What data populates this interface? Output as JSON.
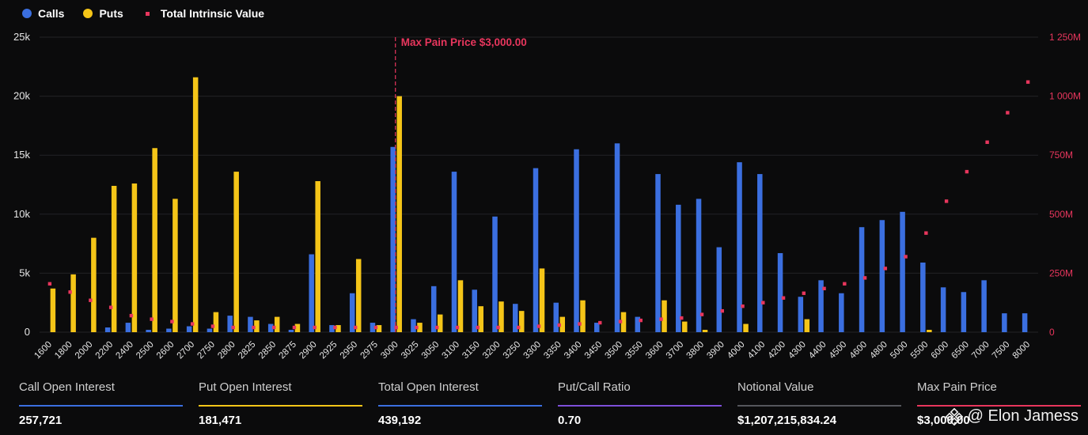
{
  "colors": {
    "calls": "#3b6fe0",
    "puts": "#f5c518",
    "intrinsic": "#e8365d",
    "bg": "#0b0b0c",
    "ratio": "#7d4fd9",
    "grid": "#232326"
  },
  "legend": {
    "calls": "Calls",
    "puts": "Puts",
    "intrinsic": "Total Intrinsic Value"
  },
  "chart_data": {
    "type": "bar",
    "title": "",
    "categories": [
      "1600",
      "1800",
      "2000",
      "2200",
      "2400",
      "2500",
      "2600",
      "2700",
      "2750",
      "2800",
      "2825",
      "2850",
      "2875",
      "2900",
      "2925",
      "2950",
      "2975",
      "3000",
      "3025",
      "3050",
      "3100",
      "3150",
      "3200",
      "3250",
      "3300",
      "3350",
      "3400",
      "3450",
      "3500",
      "3550",
      "3600",
      "3700",
      "3800",
      "3900",
      "4000",
      "4100",
      "4200",
      "4300",
      "4400",
      "4500",
      "4600",
      "4800",
      "5000",
      "5500",
      "6000",
      "6500",
      "7000",
      "7500",
      "8000"
    ],
    "series": [
      {
        "name": "Calls",
        "axis": "left",
        "values": [
          0,
          0,
          0,
          400,
          800,
          200,
          300,
          500,
          300,
          1400,
          1300,
          700,
          200,
          6600,
          600,
          3300,
          800,
          15700,
          1100,
          3900,
          13600,
          3600,
          9800,
          2400,
          13900,
          2500,
          15500,
          800,
          16000,
          1300,
          13400,
          10800,
          11300,
          7200,
          14400,
          13400,
          6700,
          3000,
          4400,
          3300,
          8900,
          9500,
          10200,
          5900,
          3800,
          3400,
          4400,
          1600,
          1600
        ]
      },
      {
        "name": "Puts",
        "axis": "left",
        "values": [
          3700,
          4900,
          8000,
          12400,
          12600,
          15600,
          11300,
          21600,
          1700,
          13600,
          1000,
          1300,
          700,
          12800,
          600,
          6200,
          600,
          20000,
          800,
          1500,
          4400,
          2200,
          2600,
          1800,
          5400,
          1300,
          2700,
          0,
          1700,
          0,
          2700,
          900,
          200,
          0,
          700,
          0,
          0,
          1100,
          0,
          0,
          0,
          0,
          0,
          200,
          0,
          0,
          0,
          0,
          0
        ]
      },
      {
        "name": "Total Intrinsic Value",
        "axis": "right",
        "type": "scatter",
        "values": [
          205,
          170,
          135,
          105,
          70,
          55,
          45,
          35,
          25,
          20,
          20,
          20,
          20,
          20,
          20,
          20,
          20,
          20,
          20,
          20,
          20,
          20,
          20,
          20,
          25,
          30,
          35,
          40,
          45,
          50,
          55,
          60,
          75,
          90,
          110,
          125,
          145,
          165,
          185,
          205,
          230,
          270,
          320,
          420,
          555,
          680,
          805,
          930,
          1060
        ]
      }
    ],
    "ylabel_left": "",
    "ylabel_right": "",
    "ylim_left": [
      0,
      25000
    ],
    "ylim_right": [
      0,
      1250
    ],
    "yticks_left": [
      "0",
      "5k",
      "10k",
      "15k",
      "20k",
      "25k"
    ],
    "yticks_right": [
      "0",
      "250M",
      "500M",
      "750M",
      "1 000M",
      "1 250M"
    ],
    "annotation": {
      "category": "3000",
      "text": "Max Pain Price $3,000.00"
    },
    "legend_position": "top-left",
    "grid": true
  },
  "stats": [
    {
      "label": "Call Open Interest",
      "value": "257,721",
      "color": "#3b6fe0"
    },
    {
      "label": "Put Open Interest",
      "value": "181,471",
      "color": "#f5c518"
    },
    {
      "label": "Total Open Interest",
      "value": "439,192",
      "color": "#3b6fe0"
    },
    {
      "label": "Put/Call Ratio",
      "value": "0.70",
      "color": "#7d4fd9"
    },
    {
      "label": "Notional Value",
      "value": "$1,207,215,834.24",
      "color": "#55565c"
    },
    {
      "label": "Max Pain Price",
      "value": "$3,000.00",
      "color": "#e8365d"
    }
  ],
  "watermark": {
    "text": "@ Elon Jamess",
    "icon": "binance-icon"
  }
}
